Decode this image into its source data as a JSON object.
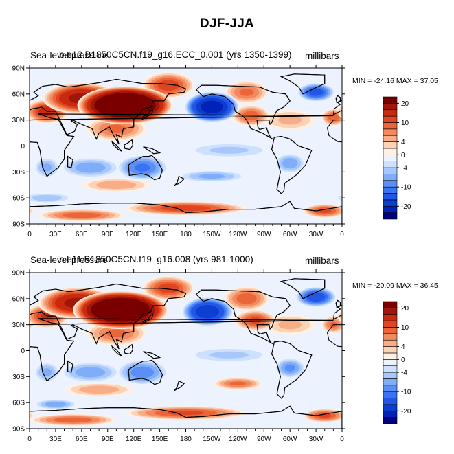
{
  "figure_title": "DJF-JJA",
  "chart_data": [
    {
      "type": "heatmap",
      "variable_title": "Sea-level pressure",
      "case_title": "b.e12.B1850C5CN.f19_g16.ECC_0.001 (yrs 1350-1399)",
      "units": "millibars",
      "min_max_label": "MIN = -24.16 MAX =  37.05",
      "min": -24.16,
      "max": 37.05,
      "x_ticks": [
        "0",
        "30E",
        "60E",
        "90E",
        "120E",
        "150E",
        "180",
        "150W",
        "120W",
        "90W",
        "60W",
        "30W",
        "0"
      ],
      "y_ticks": [
        "90N",
        "60N",
        "30N",
        "0",
        "30S",
        "60S",
        "90S"
      ],
      "colorbar_labels": [
        "20",
        "10",
        "4",
        "0",
        "-4",
        "-10",
        "-20"
      ],
      "colorbar_levels": [
        -24,
        -20,
        -16,
        -12,
        -10,
        -8,
        -6,
        -4,
        -2,
        0,
        2,
        4,
        6,
        8,
        10,
        12,
        16,
        20,
        24
      ],
      "anomalies": [
        {
          "lon": 110,
          "lat": 47,
          "value": 34,
          "rx": 55,
          "ry": 22
        },
        {
          "lon": 60,
          "lat": 55,
          "value": 18,
          "rx": 45,
          "ry": 18
        },
        {
          "lon": 20,
          "lat": 40,
          "value": 14,
          "rx": 25,
          "ry": 14
        },
        {
          "lon": 100,
          "lat": 20,
          "value": 9,
          "rx": 35,
          "ry": 14
        },
        {
          "lon": 160,
          "lat": 70,
          "value": 12,
          "rx": 30,
          "ry": 15
        },
        {
          "lon": 210,
          "lat": 45,
          "value": -24,
          "rx": 32,
          "ry": 18
        },
        {
          "lon": 250,
          "lat": 62,
          "value": 9,
          "rx": 25,
          "ry": 13
        },
        {
          "lon": 255,
          "lat": 35,
          "value": 10,
          "rx": 22,
          "ry": 12
        },
        {
          "lon": 330,
          "lat": 62,
          "value": -14,
          "rx": 22,
          "ry": 11
        },
        {
          "lon": 350,
          "lat": 33,
          "value": 10,
          "rx": 14,
          "ry": 10
        },
        {
          "lon": 300,
          "lat": 30,
          "value": 5,
          "rx": 30,
          "ry": 12
        },
        {
          "lon": 130,
          "lat": -25,
          "value": -11,
          "rx": 30,
          "ry": 15
        },
        {
          "lon": 70,
          "lat": -25,
          "value": -8,
          "rx": 35,
          "ry": 12
        },
        {
          "lon": 20,
          "lat": -25,
          "value": -7,
          "rx": 15,
          "ry": 12
        },
        {
          "lon": 300,
          "lat": -20,
          "value": -8,
          "rx": 18,
          "ry": 12
        },
        {
          "lon": 230,
          "lat": -5,
          "value": -5,
          "rx": 50,
          "ry": 9
        },
        {
          "lon": 100,
          "lat": -45,
          "value": 6,
          "rx": 40,
          "ry": 8
        },
        {
          "lon": 210,
          "lat": -35,
          "value": -7,
          "rx": 40,
          "ry": 7
        },
        {
          "lon": 180,
          "lat": -72,
          "value": 12,
          "rx": 70,
          "ry": 8
        },
        {
          "lon": 60,
          "lat": -80,
          "value": 10,
          "rx": 50,
          "ry": 7
        },
        {
          "lon": 340,
          "lat": -75,
          "value": 11,
          "rx": 25,
          "ry": 8
        },
        {
          "lon": 20,
          "lat": -60,
          "value": -6,
          "rx": 30,
          "ry": 6
        }
      ]
    },
    {
      "type": "heatmap",
      "variable_title": "Sea-level pressure",
      "case_title": "b.e11.B1850C5CN.f19_g16.008 (yrs 981-1000)",
      "units": "millibars",
      "min_max_label": "MIN = -20.09 MAX =  36.45",
      "min": -20.09,
      "max": 36.45,
      "x_ticks": [
        "0",
        "30E",
        "60E",
        "90E",
        "120E",
        "150E",
        "180",
        "150W",
        "120W",
        "90W",
        "60W",
        "30W",
        "0"
      ],
      "y_ticks": [
        "90N",
        "60N",
        "30N",
        "0",
        "30S",
        "60S",
        "90S"
      ],
      "colorbar_labels": [
        "20",
        "10",
        "4",
        "0",
        "-4",
        "-10",
        "-20"
      ],
      "colorbar_levels": [
        -24,
        -20,
        -16,
        -12,
        -10,
        -8,
        -6,
        -4,
        -2,
        0,
        2,
        4,
        6,
        8,
        10,
        12,
        16,
        20,
        24
      ],
      "anomalies": [
        {
          "lon": 105,
          "lat": 47,
          "value": 33,
          "rx": 55,
          "ry": 22
        },
        {
          "lon": 55,
          "lat": 55,
          "value": 18,
          "rx": 45,
          "ry": 18
        },
        {
          "lon": 20,
          "lat": 40,
          "value": 13,
          "rx": 25,
          "ry": 14
        },
        {
          "lon": 100,
          "lat": 20,
          "value": 9,
          "rx": 35,
          "ry": 14
        },
        {
          "lon": 160,
          "lat": 72,
          "value": 12,
          "rx": 30,
          "ry": 14
        },
        {
          "lon": 205,
          "lat": 45,
          "value": -20,
          "rx": 30,
          "ry": 17
        },
        {
          "lon": 250,
          "lat": 60,
          "value": 10,
          "rx": 26,
          "ry": 14
        },
        {
          "lon": 260,
          "lat": 35,
          "value": 11,
          "rx": 24,
          "ry": 12
        },
        {
          "lon": 330,
          "lat": 62,
          "value": -15,
          "rx": 24,
          "ry": 12
        },
        {
          "lon": 350,
          "lat": 30,
          "value": 9,
          "rx": 14,
          "ry": 10
        },
        {
          "lon": 300,
          "lat": 30,
          "value": 5,
          "rx": 30,
          "ry": 12
        },
        {
          "lon": 130,
          "lat": -25,
          "value": -10,
          "rx": 30,
          "ry": 15
        },
        {
          "lon": 70,
          "lat": -25,
          "value": -8,
          "rx": 35,
          "ry": 12
        },
        {
          "lon": 20,
          "lat": -25,
          "value": -7,
          "rx": 15,
          "ry": 12
        },
        {
          "lon": 300,
          "lat": -20,
          "value": -9,
          "rx": 18,
          "ry": 12
        },
        {
          "lon": 230,
          "lat": -5,
          "value": -5,
          "rx": 50,
          "ry": 9
        },
        {
          "lon": 80,
          "lat": -45,
          "value": 6,
          "rx": 40,
          "ry": 8
        },
        {
          "lon": 240,
          "lat": -38,
          "value": 9,
          "rx": 28,
          "ry": 7
        },
        {
          "lon": 180,
          "lat": -72,
          "value": 11,
          "rx": 70,
          "ry": 8
        },
        {
          "lon": 50,
          "lat": -80,
          "value": 10,
          "rx": 50,
          "ry": 7
        },
        {
          "lon": 340,
          "lat": -75,
          "value": 11,
          "rx": 25,
          "ry": 8
        },
        {
          "lon": 30,
          "lat": -62,
          "value": -8,
          "rx": 25,
          "ry": 6
        }
      ]
    }
  ],
  "colors": {
    "palette": [
      "#000080",
      "#0022b8",
      "#0a3fd0",
      "#2356e6",
      "#3a73f0",
      "#5a90f5",
      "#80adf8",
      "#a8c8fb",
      "#cde0fd",
      "#ecf3fe",
      "#fff0e4",
      "#fdd2b5",
      "#f9ad87",
      "#f28a5f",
      "#ea6638",
      "#df4520",
      "#c82a10",
      "#a01608",
      "#7a0000"
    ],
    "land_outline": "#000000"
  }
}
